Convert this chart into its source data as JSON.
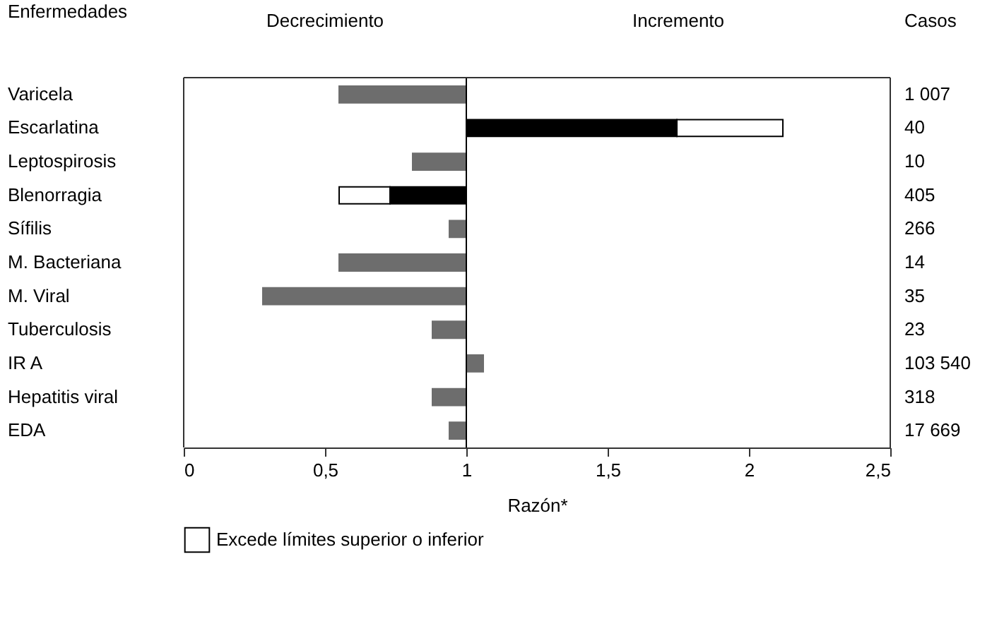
{
  "chart_data": {
    "type": "bar",
    "orientation": "horizontal",
    "categories": [
      "Varicela",
      "Escarlatina",
      "Leptospirosis",
      "Blenorragia",
      "Sífilis",
      "M. Bacteriana",
      "M. Viral",
      "Tuberculosis",
      "IR A",
      "Hepatitis viral",
      "EDA"
    ],
    "y2_categories": [
      "1 007",
      "40",
      "10",
      "405",
      "266",
      "14",
      "35",
      "23",
      "103 540",
      "318",
      "17 669"
    ],
    "ylabel": "Enfermedades",
    "y2label": "Casos",
    "xlabel": "Razón*",
    "annotations": [
      "Decrecimiento",
      "Incremento"
    ],
    "series": [
      {
        "color": "#6d6d6d",
        "base": [
          1,
          null,
          1,
          null,
          1,
          1,
          1,
          1,
          1,
          1,
          1
        ],
        "values": [
          -0.45,
          null,
          -0.19,
          null,
          -0.06,
          -0.45,
          -0.72,
          -0.12,
          0.06,
          -0.12,
          -0.06
        ]
      },
      {
        "color": "#000000",
        "base": [
          null,
          1,
          null,
          1,
          null,
          null,
          null,
          null,
          null,
          null,
          null
        ],
        "values": [
          null,
          0.745,
          null,
          -0.27,
          null,
          null,
          null,
          null,
          null,
          null,
          null
        ]
      },
      {
        "name": "Excede límites superior o inferior",
        "color": "#ffffff",
        "base": [
          null,
          1.745,
          null,
          0.73,
          null,
          null,
          null,
          null,
          null,
          null,
          null
        ],
        "values": [
          null,
          0.375,
          null,
          -0.18,
          null,
          null,
          null,
          null,
          null,
          null,
          null
        ]
      }
    ],
    "ref_lines": [
      {
        "axis": "x",
        "value": 1
      }
    ],
    "xlim": [
      0,
      2.5
    ],
    "xticks": [
      0,
      {
        "value": 0.5,
        "label": "0,5"
      },
      1,
      {
        "value": 1.5,
        "label": "1,5"
      },
      2,
      {
        "value": 2.5,
        "label": "2,5"
      }
    ],
    "grid": false,
    "legend": "bottom"
  }
}
